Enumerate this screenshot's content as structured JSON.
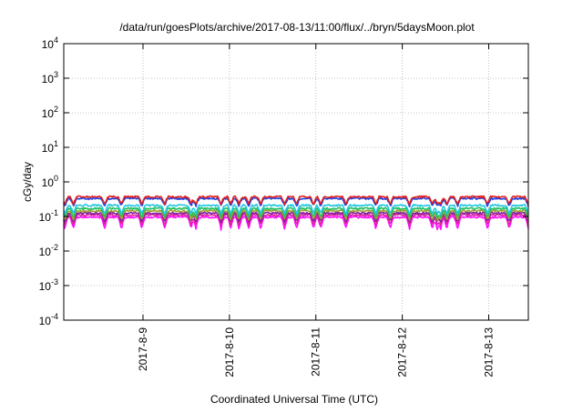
{
  "chart_data": {
    "type": "line",
    "title": "/data/run/goesPlots/archive/2017-08-13/11:00/flux/../bryn/5daysMoon.plot",
    "xlabel": "Coordinated Universal Time (UTC)",
    "ylabel": "cGy/day",
    "yscale": "log",
    "ylim": [
      0.0001,
      10000
    ],
    "xlim": [
      "2017-08-08 02:00",
      "2017-08-13 11:00"
    ],
    "grid": true,
    "y_ticks": [
      {
        "value": 0.0001,
        "base": "10",
        "exp": "-4"
      },
      {
        "value": 0.001,
        "base": "10",
        "exp": "-3"
      },
      {
        "value": 0.01,
        "base": "10",
        "exp": "-2"
      },
      {
        "value": 0.1,
        "base": "10",
        "exp": "-1"
      },
      {
        "value": 1,
        "base": "10",
        "exp": "0"
      },
      {
        "value": 10,
        "base": "10",
        "exp": "1"
      },
      {
        "value": 100,
        "base": "10",
        "exp": "2"
      },
      {
        "value": 1000,
        "base": "10",
        "exp": "3"
      },
      {
        "value": 10000,
        "base": "10",
        "exp": "4"
      }
    ],
    "x_ticks": [
      {
        "value": "2017-08-09 00:00",
        "label": "2017-8-9"
      },
      {
        "value": "2017-08-10 00:00",
        "label": "2017-8-10"
      },
      {
        "value": "2017-08-11 00:00",
        "label": "2017-8-11"
      },
      {
        "value": "2017-08-12 00:00",
        "label": "2017-8-12"
      },
      {
        "value": "2017-08-13 00:00",
        "label": "2017-8-13"
      }
    ],
    "series": [
      {
        "color": "#e02020",
        "baseline": 0.37,
        "dip": 0.6
      },
      {
        "color": "#2040e0",
        "baseline": 0.33,
        "dip": 0.6
      },
      {
        "color": "#20c8e0",
        "baseline": 0.21,
        "dip": 0.55
      },
      {
        "color": "#20c060",
        "baseline": 0.17,
        "dip": 0.55
      },
      {
        "color": "#a0a030",
        "baseline": 0.145,
        "dip": 0.55
      },
      {
        "color": "#8020a0",
        "baseline": 0.125,
        "dip": 0.55
      },
      {
        "color": "#e020a0",
        "baseline": 0.11,
        "dip": 0.5
      },
      {
        "color": "#ff10ff",
        "baseline": 0.095,
        "dip": 0.45
      }
    ],
    "dip_times": [
      "2017-08-08 02:20",
      "2017-08-08 04:40",
      "2017-08-08 13:20",
      "2017-08-08 18:00",
      "2017-08-08 23:40",
      "2017-08-09 06:00",
      "2017-08-09 13:20",
      "2017-08-09 14:40",
      "2017-08-09 21:40",
      "2017-08-10 00:20",
      "2017-08-10 02:40",
      "2017-08-10 05:20",
      "2017-08-10 08:40",
      "2017-08-10 15:20",
      "2017-08-10 18:40",
      "2017-08-10 23:20",
      "2017-08-11 01:20",
      "2017-08-11 08:20",
      "2017-08-11 16:40",
      "2017-08-11 20:40",
      "2017-08-12 02:00",
      "2017-08-12 08:20",
      "2017-08-12 09:40",
      "2017-08-12 10:40",
      "2017-08-12 12:20",
      "2017-08-12 15:20",
      "2017-08-12 23:40",
      "2017-08-13 05:40",
      "2017-08-13 11:00"
    ]
  }
}
